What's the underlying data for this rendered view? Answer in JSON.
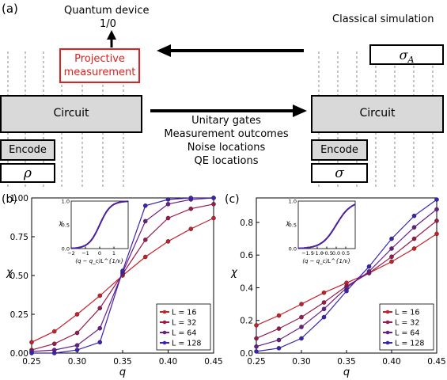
{
  "top": {
    "panel_label": "(a)",
    "quantum_device": "Quantum device",
    "outcome": "1/0",
    "projective_1": "Projective",
    "projective_2": "measurement",
    "circuit_left": "Circuit",
    "encode_left": "Encode",
    "rho": "ρ",
    "classical_sim": "Classical simulation",
    "sigma_a": "σ",
    "sigma_a_sub": "A",
    "circuit_right": "Circuit",
    "encode_right": "Encode",
    "sigma": "σ",
    "transfer": [
      "Unitary gates",
      "Measurement outcomes",
      "Noise locations",
      "QE locations"
    ],
    "colors": {
      "projective_border": "#e0201f",
      "projective_text": "#e0201f",
      "box_fill": "#d9d9d9"
    }
  },
  "chart_data": [
    {
      "panel_label": "(b)",
      "type": "line",
      "xlabel": "q",
      "ylabel": "χ",
      "xlim": [
        0.25,
        0.45
      ],
      "ylim": [
        0.0,
        1.0
      ],
      "xticks": [
        "0.25",
        "0.30",
        "0.35",
        "0.40",
        "0.45"
      ],
      "yticks": [
        "0.00",
        "0.25",
        "0.50",
        "0.75",
        "1.00"
      ],
      "legend_position": "bottom-right",
      "series": [
        {
          "name": "L = 16",
          "color": "#c8202a",
          "x": [
            0.25,
            0.275,
            0.3,
            0.325,
            0.35,
            0.375,
            0.4,
            0.425,
            0.45
          ],
          "y": [
            0.07,
            0.14,
            0.25,
            0.37,
            0.5,
            0.62,
            0.72,
            0.8,
            0.87
          ]
        },
        {
          "name": "L = 32",
          "color": "#991b4e",
          "x": [
            0.25,
            0.275,
            0.3,
            0.325,
            0.35,
            0.375,
            0.4,
            0.425,
            0.45
          ],
          "y": [
            0.02,
            0.06,
            0.13,
            0.29,
            0.51,
            0.73,
            0.87,
            0.93,
            0.96
          ]
        },
        {
          "name": "L = 64",
          "color": "#6a1d8a",
          "x": [
            0.25,
            0.275,
            0.3,
            0.325,
            0.35,
            0.375,
            0.4,
            0.425,
            0.45
          ],
          "y": [
            0.01,
            0.02,
            0.05,
            0.16,
            0.52,
            0.85,
            0.96,
            0.99,
            1.0
          ]
        },
        {
          "name": "L = 128",
          "color": "#3a22b3",
          "x": [
            0.25,
            0.275,
            0.3,
            0.325,
            0.35,
            0.375,
            0.4,
            0.425,
            0.45
          ],
          "y": [
            0.0,
            0.0,
            0.02,
            0.07,
            0.53,
            0.95,
            0.99,
            1.0,
            1.0
          ]
        }
      ],
      "inset": {
        "xlabel": "(q − q_c)L^{1/ν}",
        "ylabel": "χ",
        "xlim": [
          -2,
          2
        ],
        "ylim": [
          0,
          1
        ],
        "xticks": [
          "−2",
          "−1",
          "0",
          "1"
        ],
        "yticks": [
          "0.0",
          "0.5",
          "1.0"
        ]
      }
    },
    {
      "panel_label": "(c)",
      "type": "line",
      "xlabel": "q",
      "ylabel": "χ",
      "xlim": [
        0.25,
        0.45
      ],
      "ylim": [
        0.0,
        0.95
      ],
      "xticks": [
        "0.25",
        "0.30",
        "0.35",
        "0.40",
        "0.45"
      ],
      "yticks": [
        "0.0",
        "0.2",
        "0.4",
        "0.6",
        "0.8"
      ],
      "legend_position": "bottom-right",
      "series": [
        {
          "name": "L = 16",
          "color": "#c8202a",
          "x": [
            0.25,
            0.275,
            0.3,
            0.325,
            0.35,
            0.375,
            0.4,
            0.425,
            0.45
          ],
          "y": [
            0.17,
            0.23,
            0.3,
            0.37,
            0.43,
            0.49,
            0.56,
            0.64,
            0.73
          ]
        },
        {
          "name": "L = 32",
          "color": "#991b4e",
          "x": [
            0.25,
            0.275,
            0.3,
            0.325,
            0.35,
            0.375,
            0.4,
            0.425,
            0.45
          ],
          "y": [
            0.09,
            0.15,
            0.22,
            0.31,
            0.41,
            0.49,
            0.59,
            0.7,
            0.81
          ]
        },
        {
          "name": "L = 64",
          "color": "#6a1d8a",
          "x": [
            0.25,
            0.275,
            0.3,
            0.325,
            0.35,
            0.375,
            0.4,
            0.425,
            0.45
          ],
          "y": [
            0.04,
            0.08,
            0.16,
            0.27,
            0.4,
            0.5,
            0.64,
            0.77,
            0.88
          ]
        },
        {
          "name": "L = 128",
          "color": "#3a22b3",
          "x": [
            0.25,
            0.275,
            0.3,
            0.325,
            0.35,
            0.375,
            0.4,
            0.425,
            0.45
          ],
          "y": [
            0.01,
            0.03,
            0.09,
            0.22,
            0.38,
            0.53,
            0.7,
            0.84,
            0.94
          ]
        }
      ],
      "inset": {
        "xlabel": "(q − q_c)L^{1/ν}",
        "ylabel": "χ",
        "xlim": [
          -2,
          1
        ],
        "ylim": [
          0,
          1
        ],
        "xticks": [
          "−1.5",
          "−1.0",
          "−0.5",
          "0.0",
          "0.5"
        ],
        "yticks": [
          "0.0",
          "0.5",
          "1.0"
        ]
      }
    }
  ]
}
